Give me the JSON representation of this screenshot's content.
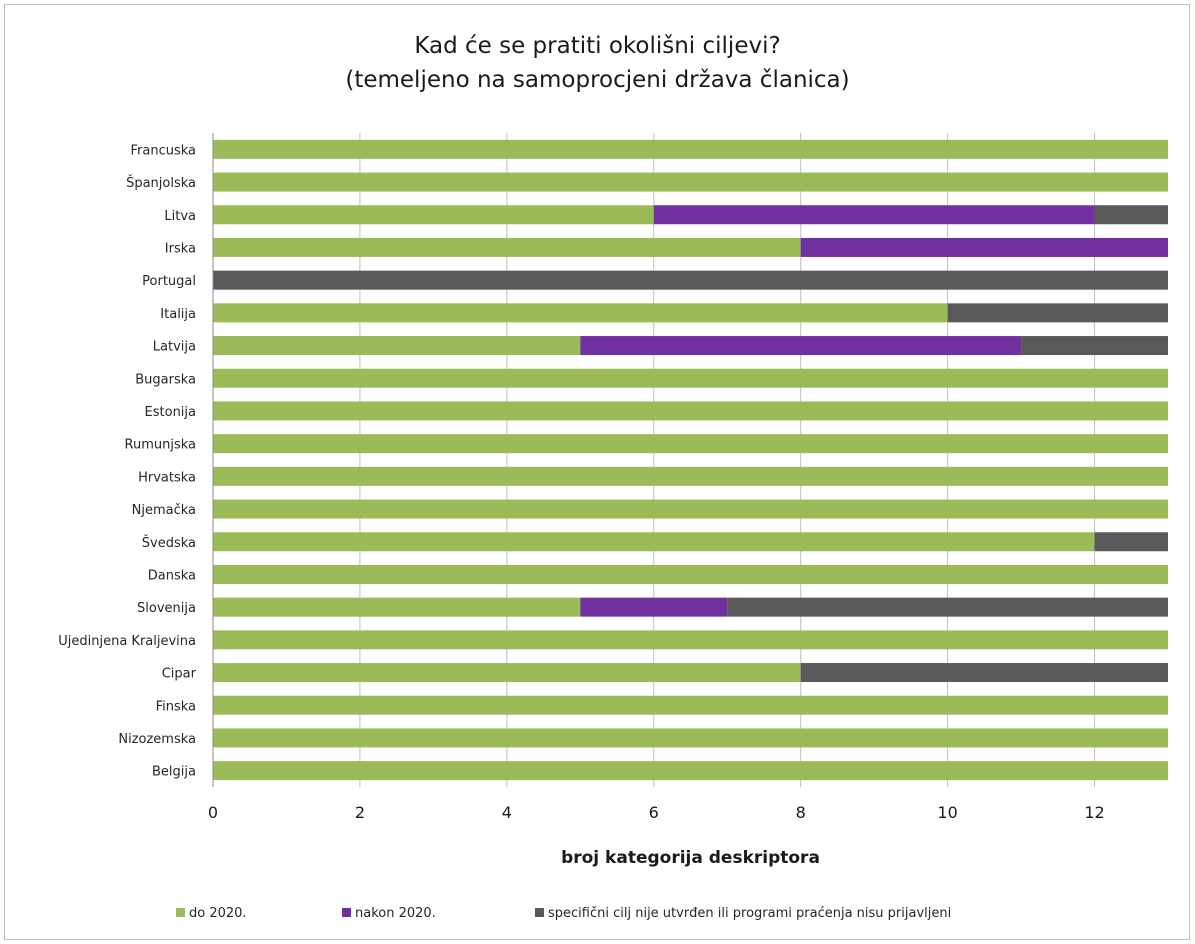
{
  "chart_data": {
    "type": "bar",
    "orientation": "horizontal",
    "stacked": true,
    "title_line1": "Kad će se pratiti okolišni ciljevi?",
    "title_line2": "(temeljeno na samoprocjeni država članica)",
    "xlabel": "broj kategorija deskriptora",
    "ylabel": "",
    "xlim": [
      0,
      13
    ],
    "xticks": [
      0,
      2,
      4,
      6,
      8,
      10,
      12
    ],
    "grid": "vertical",
    "legend_position": "bottom",
    "categories": [
      "Francuska",
      "Španjolska",
      "Litva",
      "Irska",
      "Portugal",
      "Italija",
      "Latvija",
      "Bugarska",
      "Estonija",
      "Rumunjska",
      "Hrvatska",
      "Njemačka",
      "Švedska",
      "Danska",
      "Slovenija",
      "Ujedinjena Kraljevina",
      "Cipar",
      "Finska",
      "Nizozemska",
      "Belgija"
    ],
    "series": [
      {
        "name": "do 2020.",
        "color": "#9bbb59",
        "values": [
          13,
          13,
          6,
          8,
          0,
          10,
          5,
          13,
          13,
          13,
          13,
          13,
          12,
          13,
          5,
          13,
          8,
          13,
          13,
          13
        ]
      },
      {
        "name": "nakon 2020.",
        "color": "#7030a0",
        "values": [
          0,
          0,
          6,
          5,
          0,
          0,
          6,
          0,
          0,
          0,
          0,
          0,
          0,
          0,
          2,
          0,
          0,
          0,
          0,
          0
        ]
      },
      {
        "name": "specifični cilj nije utvrđen ili programi praćenja nisu prijavljeni",
        "color": "#595959",
        "values": [
          0,
          0,
          1,
          0,
          13,
          3,
          2,
          0,
          0,
          0,
          0,
          0,
          1,
          0,
          6,
          0,
          5,
          0,
          0,
          0
        ]
      }
    ]
  }
}
